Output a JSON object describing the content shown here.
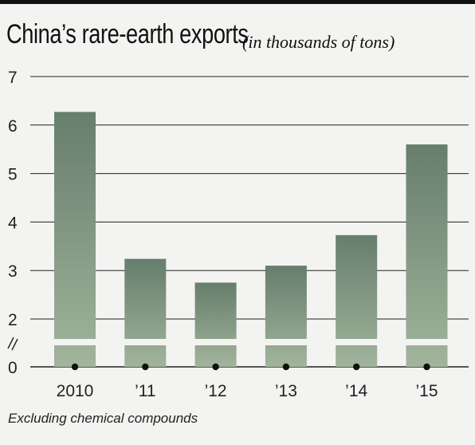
{
  "title": "China’s rare-earth exports",
  "subtitle": "(in thousands of tons)",
  "footnote": "Excluding chemical compounds",
  "colors": {
    "bar_top": "#667e6c",
    "bar_bottom": "#a2b49c",
    "gridline": "#222222",
    "background": "#f3f3f1"
  },
  "chart_data": {
    "type": "bar",
    "categories": [
      "2010",
      "’11",
      "’12",
      "’13",
      "’14",
      "’15"
    ],
    "values": [
      6.27,
      3.24,
      2.75,
      3.1,
      3.73,
      5.6
    ],
    "y_ticks": [
      "0",
      "2",
      "3",
      "4",
      "5",
      "6",
      "7"
    ],
    "ylim": [
      0,
      7
    ],
    "axis_break": "between 0 and 2",
    "grid": true
  }
}
